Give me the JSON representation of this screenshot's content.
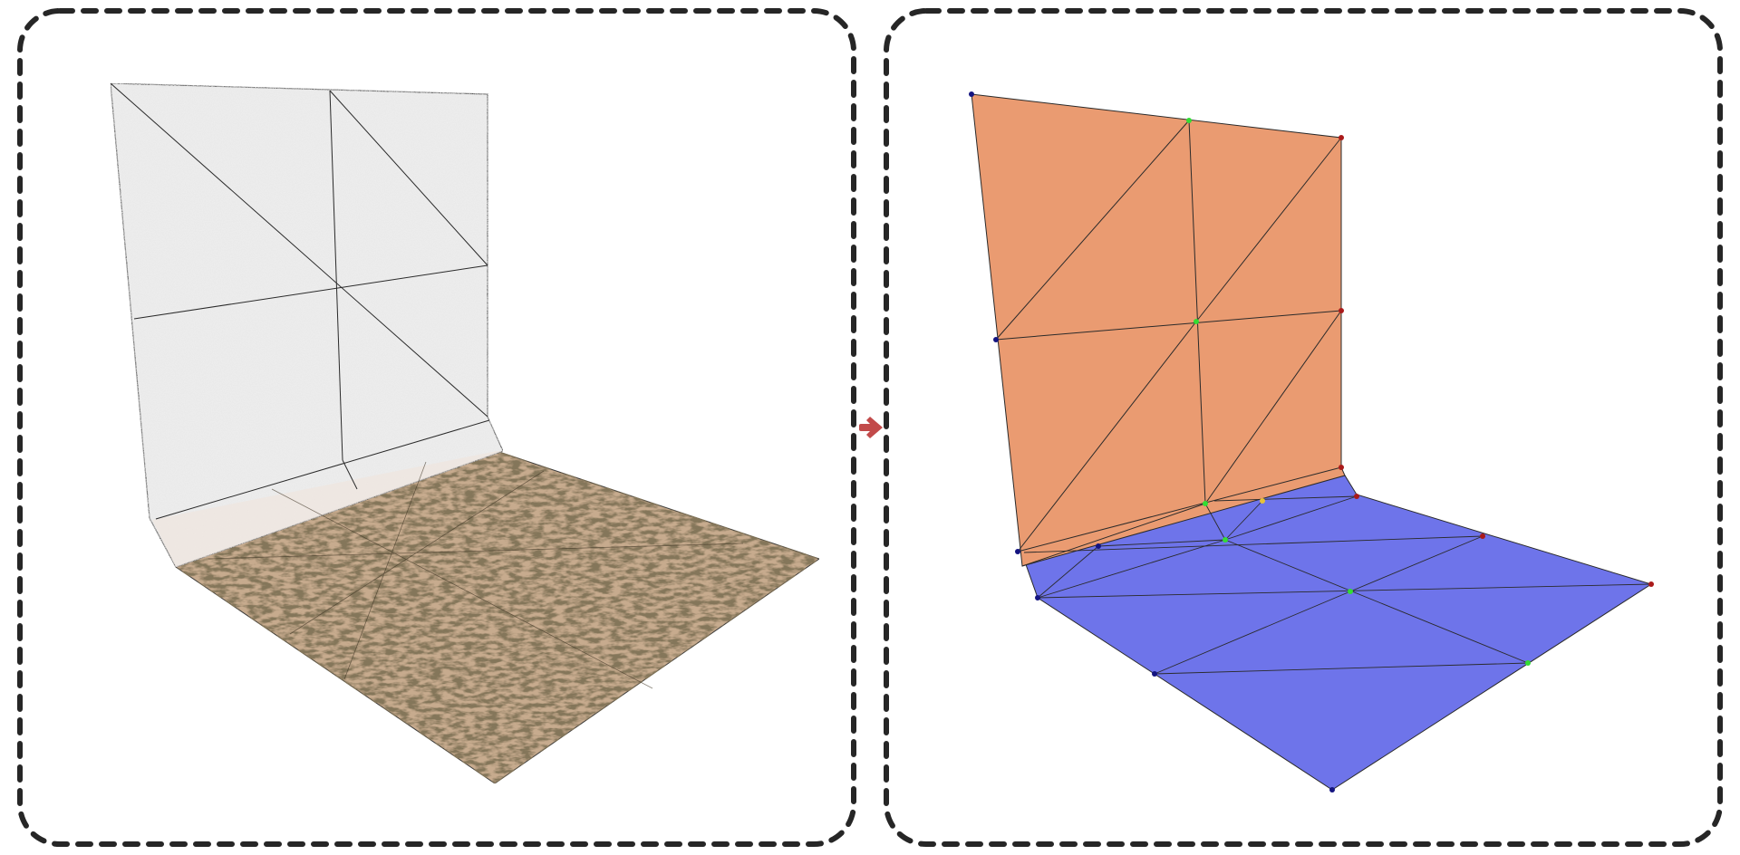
{
  "panels": [
    {
      "id": "textured",
      "style": "textured-render"
    },
    {
      "id": "segmented",
      "style": "region-colored"
    }
  ],
  "transition_icon": "right-arrow-icon",
  "colors": {
    "panel_border": "#262626",
    "arrow": "#c24a4a",
    "wall_region": "#ea9b71",
    "floor_region": "#6e74ea",
    "mesh_edge": "#2a2a2a",
    "wall_texture": "#e9e9e9",
    "floor_texture": "#c7ab8e",
    "vertex_blue": "#141480",
    "vertex_green": "#33dd33",
    "vertex_red": "#aa1a1a",
    "vertex_yellow": "#e6c23a"
  },
  "vertex_marker_count": 20
}
